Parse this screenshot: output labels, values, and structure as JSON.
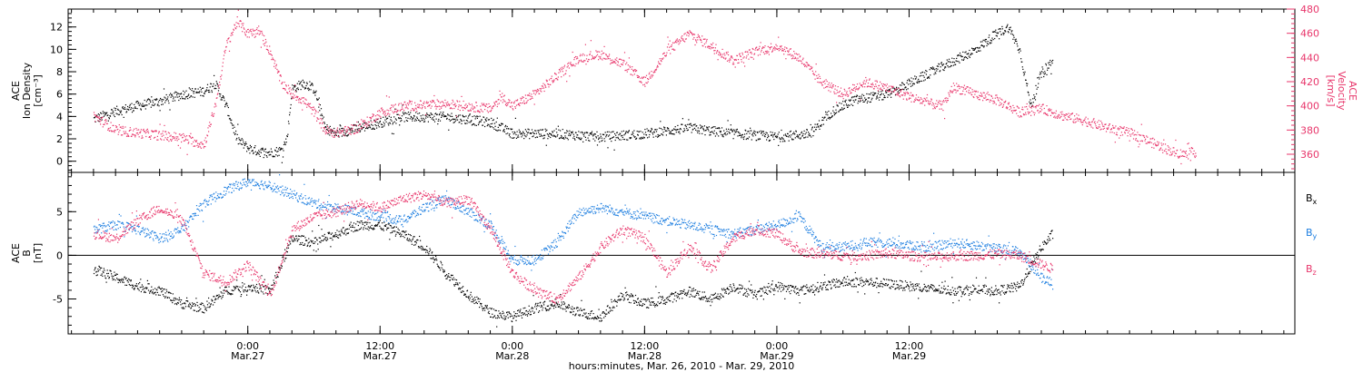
{
  "chart_data": [
    {
      "id": "top",
      "type": "scatter",
      "ylabel_left": [
        "ACE",
        "Ion Density",
        "[cm⁻³]"
      ],
      "ylabel_right": [
        "ACE",
        "Velocity",
        "[km/s]"
      ],
      "ylim_left": [
        -1,
        13.6
      ],
      "yticks_left": [
        0,
        2,
        4,
        6,
        8,
        10,
        12
      ],
      "ylim_right": [
        345,
        480
      ],
      "yticks_right": [
        360,
        380,
        400,
        420,
        440,
        460,
        480
      ],
      "series": [
        {
          "name": "",
          "axis": "left",
          "color": "#000000",
          "points": [
            [
              -14,
              3.8
            ],
            [
              -12,
              4.5
            ],
            [
              -10,
              5.0
            ],
            [
              -8,
              5.4
            ],
            [
              -6,
              6.0
            ],
            [
              -4,
              6.3
            ],
            [
              -3,
              7.0
            ],
            [
              -2,
              5.0
            ],
            [
              -1,
              2.0
            ],
            [
              0,
              1.2
            ],
            [
              1,
              0.9
            ],
            [
              2,
              0.8
            ],
            [
              3,
              1.0
            ],
            [
              3.5,
              2.0
            ],
            [
              4,
              6.5
            ],
            [
              5,
              7.0
            ],
            [
              6,
              6.5
            ],
            [
              7,
              3.0
            ],
            [
              8,
              2.5
            ],
            [
              10,
              3.0
            ],
            [
              12,
              3.5
            ],
            [
              14,
              4.0
            ],
            [
              18,
              4.0
            ],
            [
              22,
              3.5
            ],
            [
              24,
              2.5
            ],
            [
              28,
              2.5
            ],
            [
              32,
              2.2
            ],
            [
              36,
              2.5
            ],
            [
              40,
              3.0
            ],
            [
              44,
              2.5
            ],
            [
              48,
              2.2
            ],
            [
              51,
              2.5
            ],
            [
              53,
              4.5
            ],
            [
              55,
              5.5
            ],
            [
              58,
              6.0
            ],
            [
              62,
              8.0
            ],
            [
              64,
              9.0
            ],
            [
              66,
              10.0
            ],
            [
              68,
              11.5
            ],
            [
              69,
              12.0
            ],
            [
              70,
              10.0
            ],
            [
              71,
              5.0
            ],
            [
              72,
              8.0
            ],
            [
              73,
              9.0
            ]
          ]
        },
        {
          "name": "",
          "axis": "right",
          "color": "#e8366b",
          "points": [
            [
              -14,
              392
            ],
            [
              -12,
              380
            ],
            [
              -10,
              378
            ],
            [
              -8,
              376
            ],
            [
              -6,
              374
            ],
            [
              -4,
              368
            ],
            [
              -3,
              400
            ],
            [
              -2,
              450
            ],
            [
              -1,
              470
            ],
            [
              0,
              460
            ],
            [
              1,
              462
            ],
            [
              2,
              445
            ],
            [
              3,
              420
            ],
            [
              4,
              410
            ],
            [
              5,
              405
            ],
            [
              6,
              395
            ],
            [
              7,
              380
            ],
            [
              8,
              378
            ],
            [
              10,
              382
            ],
            [
              12,
              395
            ],
            [
              14,
              400
            ],
            [
              18,
              402
            ],
            [
              22,
              398
            ],
            [
              23,
              408
            ],
            [
              24,
              400
            ],
            [
              26,
              410
            ],
            [
              28,
              425
            ],
            [
              30,
              440
            ],
            [
              32,
              443
            ],
            [
              34,
              435
            ],
            [
              36,
              420
            ],
            [
              38,
              445
            ],
            [
              40,
              460
            ],
            [
              42,
              450
            ],
            [
              44,
              438
            ],
            [
              46,
              445
            ],
            [
              48,
              450
            ],
            [
              50,
              440
            ],
            [
              52,
              420
            ],
            [
              54,
              410
            ],
            [
              56,
              420
            ],
            [
              58,
              415
            ],
            [
              60,
              408
            ],
            [
              62,
              402
            ],
            [
              63,
              400
            ],
            [
              64,
              416
            ],
            [
              66,
              410
            ],
            [
              68,
              405
            ],
            [
              70,
              395
            ],
            [
              72,
              398
            ],
            [
              74,
              392
            ],
            [
              76,
              388
            ],
            [
              78,
              382
            ],
            [
              80,
              378
            ],
            [
              82,
              370
            ],
            [
              84,
              362
            ],
            [
              85,
              360
            ],
            [
              86,
              362
            ]
          ]
        }
      ]
    },
    {
      "id": "bottom",
      "type": "scatter",
      "ylabel_left": [
        "ACE",
        "B",
        "[nT]"
      ],
      "ylim_left": [
        -9,
        9.5
      ],
      "yticks_left": [
        -5,
        0,
        5
      ],
      "zero_line": true,
      "series": [
        {
          "name": "Bx",
          "color": "#000000",
          "points": [
            [
              -14,
              -1.5
            ],
            [
              -12,
              -2.5
            ],
            [
              -10,
              -3.5
            ],
            [
              -8,
              -4.0
            ],
            [
              -6,
              -5.5
            ],
            [
              -4,
              -6.0
            ],
            [
              -2,
              -4.0
            ],
            [
              0,
              -3.5
            ],
            [
              2,
              -4.0
            ],
            [
              4,
              2.0
            ],
            [
              6,
              1.5
            ],
            [
              8,
              2.5
            ],
            [
              10,
              3.5
            ],
            [
              12,
              3.5
            ],
            [
              14,
              2.5
            ],
            [
              16,
              1.0
            ],
            [
              18,
              -2.0
            ],
            [
              20,
              -4.5
            ],
            [
              22,
              -6.5
            ],
            [
              24,
              -7.0
            ],
            [
              26,
              -6.0
            ],
            [
              28,
              -5.5
            ],
            [
              30,
              -6.5
            ],
            [
              32,
              -7.0
            ],
            [
              34,
              -4.5
            ],
            [
              36,
              -5.5
            ],
            [
              38,
              -5.0
            ],
            [
              40,
              -4.0
            ],
            [
              42,
              -5.0
            ],
            [
              44,
              -3.5
            ],
            [
              46,
              -4.5
            ],
            [
              48,
              -3.5
            ],
            [
              50,
              -4.0
            ],
            [
              52,
              -3.5
            ],
            [
              54,
              -3.0
            ],
            [
              56,
              -3.0
            ],
            [
              58,
              -3.2
            ],
            [
              60,
              -3.5
            ],
            [
              62,
              -3.8
            ],
            [
              64,
              -4.0
            ],
            [
              66,
              -3.8
            ],
            [
              68,
              -4.0
            ],
            [
              70,
              -3.5
            ],
            [
              72,
              1.0
            ],
            [
              73,
              2.5
            ]
          ]
        },
        {
          "name": "By",
          "color": "#1f7fe0",
          "points": [
            [
              -14,
              3.0
            ],
            [
              -12,
              3.5
            ],
            [
              -10,
              3.0
            ],
            [
              -8,
              2.0
            ],
            [
              -6,
              3.0
            ],
            [
              -4,
              6.0
            ],
            [
              -2,
              7.5
            ],
            [
              0,
              8.5
            ],
            [
              2,
              8.0
            ],
            [
              4,
              7.0
            ],
            [
              6,
              6.0
            ],
            [
              8,
              5.5
            ],
            [
              10,
              5.0
            ],
            [
              12,
              4.5
            ],
            [
              14,
              4.0
            ],
            [
              16,
              5.5
            ],
            [
              18,
              6.5
            ],
            [
              20,
              5.0
            ],
            [
              22,
              3.5
            ],
            [
              24,
              -0.5
            ],
            [
              26,
              -0.5
            ],
            [
              28,
              1.5
            ],
            [
              30,
              5.0
            ],
            [
              32,
              5.5
            ],
            [
              34,
              5.0
            ],
            [
              36,
              4.5
            ],
            [
              38,
              4.0
            ],
            [
              40,
              3.5
            ],
            [
              42,
              3.0
            ],
            [
              44,
              2.5
            ],
            [
              46,
              3.0
            ],
            [
              48,
              3.5
            ],
            [
              50,
              4.5
            ],
            [
              52,
              1.0
            ],
            [
              54,
              1.0
            ],
            [
              56,
              1.5
            ],
            [
              58,
              1.5
            ],
            [
              60,
              1.2
            ],
            [
              62,
              1.0
            ],
            [
              64,
              1.5
            ],
            [
              66,
              1.2
            ],
            [
              68,
              0.8
            ],
            [
              70,
              0.5
            ],
            [
              72,
              -2.5
            ],
            [
              73,
              -3.0
            ]
          ]
        },
        {
          "name": "Bz",
          "color": "#e8366b",
          "points": [
            [
              -14,
              2.5
            ],
            [
              -12,
              2.0
            ],
            [
              -10,
              4.0
            ],
            [
              -8,
              5.5
            ],
            [
              -6,
              4.0
            ],
            [
              -4,
              -2.0
            ],
            [
              -2,
              -3.0
            ],
            [
              0,
              -1.0
            ],
            [
              2,
              -4.5
            ],
            [
              4,
              3.0
            ],
            [
              6,
              4.5
            ],
            [
              8,
              5.0
            ],
            [
              10,
              6.0
            ],
            [
              12,
              5.5
            ],
            [
              14,
              6.5
            ],
            [
              16,
              7.0
            ],
            [
              18,
              6.0
            ],
            [
              20,
              6.5
            ],
            [
              22,
              3.0
            ],
            [
              24,
              -2.0
            ],
            [
              26,
              -4.0
            ],
            [
              28,
              -5.0
            ],
            [
              30,
              -2.5
            ],
            [
              32,
              1.0
            ],
            [
              34,
              3.0
            ],
            [
              36,
              2.0
            ],
            [
              38,
              -2.0
            ],
            [
              40,
              1.0
            ],
            [
              42,
              -1.5
            ],
            [
              44,
              2.0
            ],
            [
              46,
              3.0
            ],
            [
              48,
              2.5
            ],
            [
              50,
              0.5
            ],
            [
              52,
              0.2
            ],
            [
              54,
              0.0
            ],
            [
              56,
              0.0
            ],
            [
              58,
              0.3
            ],
            [
              60,
              0.0
            ],
            [
              62,
              -0.2
            ],
            [
              64,
              0.0
            ],
            [
              66,
              0.0
            ],
            [
              68,
              0.2
            ],
            [
              70,
              0.0
            ],
            [
              72,
              -1.0
            ],
            [
              73,
              -1.5
            ]
          ]
        }
      ],
      "legend_entries": [
        {
          "text": "B",
          "sub": "x",
          "color": "#000000"
        },
        {
          "text": "B",
          "sub": "y",
          "color": "#1f7fe0"
        },
        {
          "text": "B",
          "sub": "z",
          "color": "#e8366b"
        }
      ]
    }
  ],
  "x_axis": {
    "unit": "hours since 2010-03-27 00:00",
    "xlim": [
      -16.3,
      95
    ],
    "major_ticks": [
      {
        "x": 0,
        "time": "0:00",
        "date": "Mar.27"
      },
      {
        "x": 12,
        "time": "12:00",
        "date": "Mar.27"
      },
      {
        "x": 24,
        "time": "0:00",
        "date": "Mar.28"
      },
      {
        "x": 36,
        "time": "12:00",
        "date": "Mar.28"
      },
      {
        "x": 48,
        "time": "0:00",
        "date": "Mar.29"
      },
      {
        "x": 60,
        "time": "12:00",
        "date": "Mar.29"
      }
    ],
    "label": "hours:minutes, Mar. 26, 2010 - Mar. 29, 2010"
  }
}
